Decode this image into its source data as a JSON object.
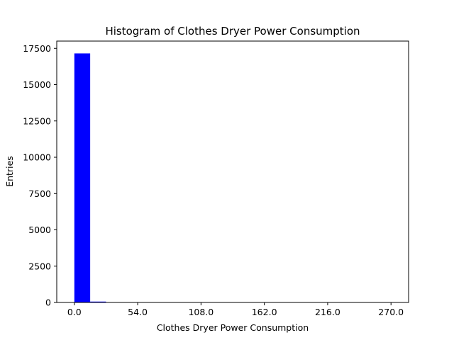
{
  "chart_data": {
    "type": "bar",
    "title": "Histogram of Clothes Dryer Power Consumption",
    "xlabel": "Clothes Dryer Power Consumption",
    "ylabel": "Entries",
    "bar_color": "#0000ff",
    "bin_edges": [
      0,
      13.5,
      27,
      40.5,
      54,
      67.5,
      81,
      94.5,
      108,
      121.5,
      135,
      148.5,
      162,
      175.5,
      189,
      202.5,
      216,
      229.5,
      243,
      256.5,
      270
    ],
    "values": [
      17150,
      60,
      8,
      4,
      3,
      2,
      2,
      1,
      1,
      1,
      1,
      1,
      1,
      1,
      1,
      1,
      1,
      1,
      1,
      1
    ],
    "xlim": [
      -15,
      285
    ],
    "ylim": [
      0,
      18000
    ],
    "xticks": [
      0,
      54,
      108,
      162,
      216,
      270
    ],
    "xtick_labels": [
      "0.0",
      "54.0",
      "108.0",
      "162.0",
      "216.0",
      "270.0"
    ],
    "yticks": [
      0,
      2500,
      5000,
      7500,
      10000,
      12500,
      15000,
      17500
    ],
    "ytick_labels": [
      "0",
      "2500",
      "5000",
      "7500",
      "10000",
      "12500",
      "15000",
      "17500"
    ],
    "grid": false,
    "legend": false
  }
}
